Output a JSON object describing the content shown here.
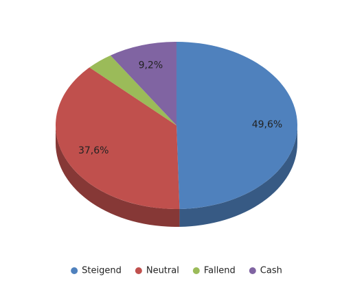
{
  "chart_data": {
    "type": "pie",
    "categories": [
      "Steigend",
      "Neutral",
      "Fallend",
      "Cash"
    ],
    "values": [
      49.6,
      37.6,
      3.6,
      9.2
    ],
    "value_labels": [
      "49,6%",
      "37,6%",
      null,
      "9,2%"
    ],
    "colors": [
      "#4f81bd",
      "#c0504d",
      "#9bbb59",
      "#8064a2"
    ],
    "legend": "bottom"
  }
}
